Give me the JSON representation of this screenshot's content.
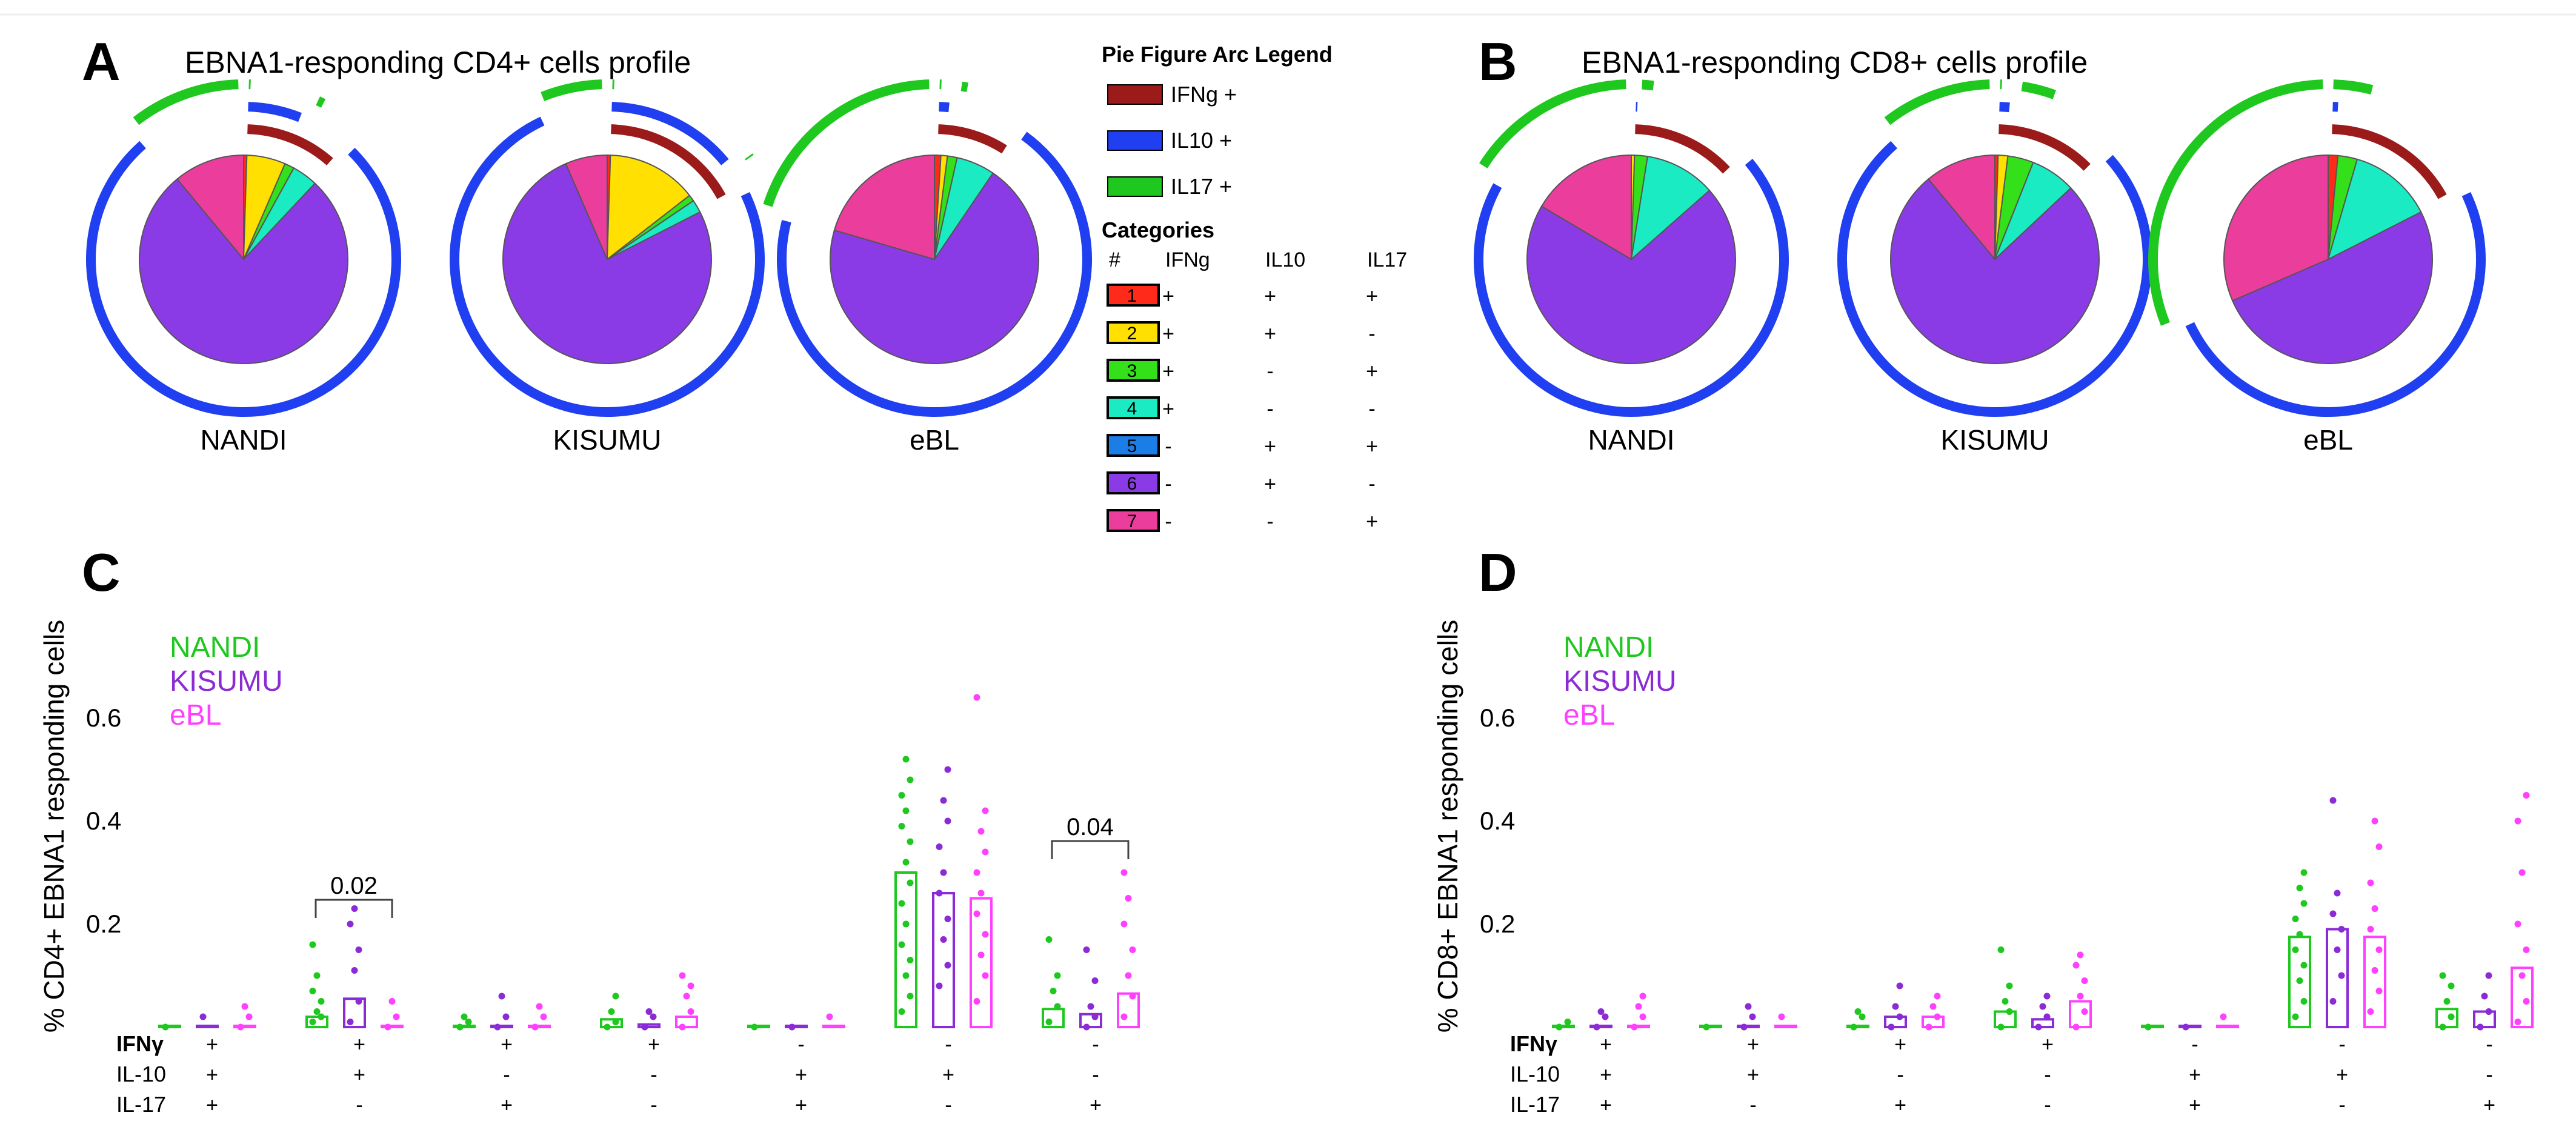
{
  "colors": {
    "cat1": "#ff2a1a",
    "cat2": "#ffe000",
    "cat3": "#33e01a",
    "cat4": "#1aebc2",
    "cat5": "#1a7ee6",
    "cat6": "#8b3be6",
    "cat7": "#ea3d9c",
    "arc_ifng": "#9b1a1a",
    "arc_il10": "#1f3ff0",
    "arc_il17": "#1ec81e",
    "nandi": "#1ec81e",
    "kisumu": "#8b2bd6",
    "ebl": "#ff40ff"
  },
  "panels": {
    "A": {
      "letter": "A",
      "title": "EBNA1-responding CD4+ cells profile"
    },
    "B": {
      "letter": "B",
      "title": "EBNA1-responding CD8+ cells profile"
    },
    "C": {
      "letter": "C"
    },
    "D": {
      "letter": "D"
    }
  },
  "legend": {
    "arc_title": "Pie Figure Arc Legend",
    "arcs": [
      {
        "label": "IFNg +",
        "color": "#9b1a1a"
      },
      {
        "label": "IL10 +",
        "color": "#1f3ff0"
      },
      {
        "label": "IL17 +",
        "color": "#1ec81e"
      }
    ],
    "categories_title": "Categories",
    "columns": [
      "#",
      "IFNg",
      "IL10",
      "IL17"
    ],
    "rows": [
      {
        "num": "1",
        "ifng": "+",
        "il10": "+",
        "il17": "+"
      },
      {
        "num": "2",
        "ifng": "+",
        "il10": "+",
        "il17": "-"
      },
      {
        "num": "3",
        "ifng": "+",
        "il10": "-",
        "il17": "+"
      },
      {
        "num": "4",
        "ifng": "+",
        "il10": "-",
        "il17": "-"
      },
      {
        "num": "5",
        "ifng": "-",
        "il10": "+",
        "il17": "+"
      },
      {
        "num": "6",
        "ifng": "-",
        "il10": "+",
        "il17": "-"
      },
      {
        "num": "7",
        "ifng": "-",
        "il10": "-",
        "il17": "+"
      }
    ]
  },
  "chart_data": [
    {
      "type": "pie",
      "panel": "A",
      "label": "NANDI",
      "categories": [
        "1",
        "2",
        "3",
        "4",
        "5",
        "6",
        "7"
      ],
      "values": [
        0.5,
        6,
        1.5,
        4,
        0,
        77,
        11
      ]
    },
    {
      "type": "pie",
      "panel": "A",
      "label": "KISUMU",
      "categories": [
        "1",
        "2",
        "3",
        "4",
        "5",
        "6",
        "7"
      ],
      "values": [
        0.5,
        14,
        1,
        2,
        0,
        76,
        6.5
      ]
    },
    {
      "type": "pie",
      "panel": "A",
      "label": "eBL",
      "categories": [
        "1",
        "2",
        "3",
        "4",
        "5",
        "6",
        "7"
      ],
      "values": [
        1,
        1,
        1.5,
        6,
        0,
        70,
        20.5
      ]
    },
    {
      "type": "pie",
      "panel": "B",
      "label": "NANDI",
      "categories": [
        "1",
        "2",
        "3",
        "4",
        "5",
        "6",
        "7"
      ],
      "values": [
        0,
        0.5,
        2,
        11,
        0,
        70,
        16.5
      ]
    },
    {
      "type": "pie",
      "panel": "B",
      "label": "KISUMU",
      "categories": [
        "1",
        "2",
        "3",
        "4",
        "5",
        "6",
        "7"
      ],
      "values": [
        0.5,
        1.5,
        4,
        7,
        0,
        76,
        11
      ]
    },
    {
      "type": "pie",
      "panel": "B",
      "label": "eBL",
      "categories": [
        "1",
        "2",
        "3",
        "4",
        "5",
        "6",
        "7"
      ],
      "values": [
        1.5,
        0,
        3,
        13,
        0,
        51,
        31.5
      ]
    },
    {
      "type": "bar",
      "panel": "C",
      "ylabel": "% CD4+ EBNA1 responding cells",
      "yticks": [
        "0.2",
        "0.4",
        "0.6"
      ],
      "ylim": [
        0,
        0.78
      ],
      "series": [
        {
          "name": "NANDI",
          "values": [
            0,
            0.02,
            0,
            0.015,
            0,
            0.3,
            0.035
          ]
        },
        {
          "name": "KISUMU",
          "values": [
            0,
            0.055,
            0,
            0.005,
            0,
            0.26,
            0.025
          ]
        },
        {
          "name": "eBL",
          "values": [
            0,
            0,
            0,
            0.02,
            0,
            0.25,
            0.065
          ]
        }
      ],
      "points": [
        [
          [
            0
          ],
          [
            0.01,
            0.02,
            0.03,
            0.05,
            0.07,
            0.1,
            0.16
          ],
          [
            0,
            0.01,
            0.02
          ],
          [
            0,
            0.01,
            0.03,
            0.06
          ],
          [
            0
          ],
          [
            0.03,
            0.06,
            0.1,
            0.13,
            0.16,
            0.2,
            0.24,
            0.28,
            0.32,
            0.36,
            0.39,
            0.42,
            0.45,
            0.48,
            0.52
          ],
          [
            0.01,
            0.04,
            0.07,
            0.1,
            0.17
          ]
        ],
        [
          [
            0.02
          ],
          [
            0.01,
            0.05,
            0.11,
            0.15,
            0.2,
            0.23
          ],
          [
            0,
            0.02,
            0.06
          ],
          [
            0,
            0.02,
            0.03
          ],
          [
            0
          ],
          [
            0.08,
            0.12,
            0.17,
            0.21,
            0.26,
            0.3,
            0.35,
            0.4,
            0.44,
            0.5
          ],
          [
            0,
            0.02,
            0.04,
            0.09,
            0.15
          ]
        ],
        [
          [
            0,
            0.02,
            0.04
          ],
          [
            0,
            0.02,
            0.05
          ],
          [
            0,
            0.02,
            0.04
          ],
          [
            0,
            0.03,
            0.06,
            0.08,
            0.1
          ],
          [
            0.02
          ],
          [
            0.05,
            0.1,
            0.14,
            0.18,
            0.22,
            0.26,
            0.3,
            0.34,
            0.38,
            0.42,
            0.64
          ],
          [
            0.02,
            0.06,
            0.1,
            0.15,
            0.2,
            0.25,
            0.3
          ]
        ]
      ],
      "significance": [
        {
          "group": 1,
          "label": "0.02"
        },
        {
          "group": 6,
          "label": "0.04"
        }
      ],
      "row_labels": [
        "IFNγ",
        "IL-10",
        "IL-17"
      ],
      "signs": [
        [
          "+",
          "+",
          "+"
        ],
        [
          "+",
          "+",
          "-"
        ],
        [
          "+",
          "-",
          "+"
        ],
        [
          "+",
          "-",
          "-"
        ],
        [
          "-",
          "+",
          "+"
        ],
        [
          "-",
          "+",
          "-"
        ],
        [
          "-",
          "-",
          "+"
        ]
      ],
      "legend": [
        "NANDI",
        "KISUMU",
        "eBL"
      ]
    },
    {
      "type": "bar",
      "panel": "D",
      "ylabel": "% CD8+ EBNA1 responding cells",
      "yticks": [
        "0.2",
        "0.4",
        "0.6"
      ],
      "ylim": [
        0,
        0.78
      ],
      "series": [
        {
          "name": "NANDI",
          "values": [
            0,
            0,
            0,
            0.03,
            0,
            0.175,
            0.035
          ]
        },
        {
          "name": "KISUMU",
          "values": [
            0,
            0,
            0.02,
            0.015,
            0,
            0.19,
            0.03
          ]
        },
        {
          "name": "eBL",
          "values": [
            0,
            0,
            0.02,
            0.05,
            0,
            0.175,
            0.115
          ]
        }
      ],
      "points": [
        [
          [
            0,
            0.01
          ],
          [
            0
          ],
          [
            0,
            0.02,
            0.03
          ],
          [
            0,
            0.03,
            0.05,
            0.08,
            0.15
          ],
          [
            0
          ],
          [
            0.02,
            0.05,
            0.09,
            0.12,
            0.15,
            0.18,
            0.21,
            0.24,
            0.27,
            0.3
          ],
          [
            0,
            0.02,
            0.05,
            0.08,
            0.1
          ]
        ],
        [
          [
            0,
            0.02,
            0.03
          ],
          [
            0,
            0.02,
            0.04
          ],
          [
            0,
            0.02,
            0.04,
            0.08
          ],
          [
            0,
            0.02,
            0.04,
            0.06
          ],
          [
            0
          ],
          [
            0.05,
            0.1,
            0.15,
            0.19,
            0.22,
            0.26,
            0.44
          ],
          [
            0,
            0.03,
            0.06,
            0.1
          ]
        ],
        [
          [
            0,
            0.02,
            0.04,
            0.06
          ],
          [
            0.02
          ],
          [
            0,
            0.02,
            0.04,
            0.06
          ],
          [
            0,
            0.03,
            0.06,
            0.09,
            0.12,
            0.14
          ],
          [
            0.02
          ],
          [
            0.03,
            0.07,
            0.11,
            0.15,
            0.19,
            0.23,
            0.28,
            0.35,
            0.4
          ],
          [
            0.01,
            0.05,
            0.1,
            0.15,
            0.2,
            0.3,
            0.4,
            0.45
          ]
        ]
      ],
      "significance": [],
      "row_labels": [
        "IFNγ",
        "IL-10",
        "IL-17"
      ],
      "signs": [
        [
          "+",
          "+",
          "+"
        ],
        [
          "+",
          "+",
          "-"
        ],
        [
          "+",
          "-",
          "+"
        ],
        [
          "+",
          "-",
          "-"
        ],
        [
          "-",
          "+",
          "+"
        ],
        [
          "-",
          "+",
          "-"
        ],
        [
          "-",
          "-",
          "+"
        ]
      ],
      "legend": [
        "NANDI",
        "KISUMU",
        "eBL"
      ]
    }
  ]
}
